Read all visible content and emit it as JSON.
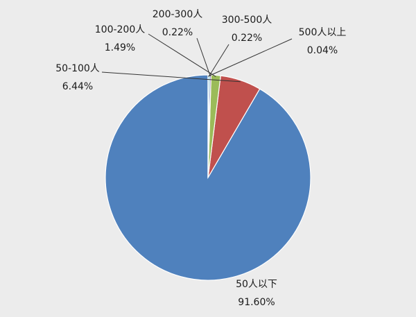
{
  "chart_data": {
    "type": "pie",
    "title": "",
    "categories": [
      "50人以下",
      "50-100人",
      "100-200人",
      "200-300人",
      "300-500人",
      "500人以上"
    ],
    "values": [
      91.6,
      6.44,
      1.49,
      0.22,
      0.22,
      0.04
    ],
    "value_labels": [
      "91.60%",
      "6.44%",
      "1.49%",
      "0.22%",
      "0.22%",
      "0.04%"
    ],
    "colors": [
      "#4f81bd",
      "#c0504d",
      "#9bbb59",
      "#8064a2",
      "#4bacc6",
      "#f79646"
    ],
    "start_angle_deg": 0,
    "direction": "counterclockwise",
    "legend": "none",
    "data_labels": "outside with leader lines"
  }
}
